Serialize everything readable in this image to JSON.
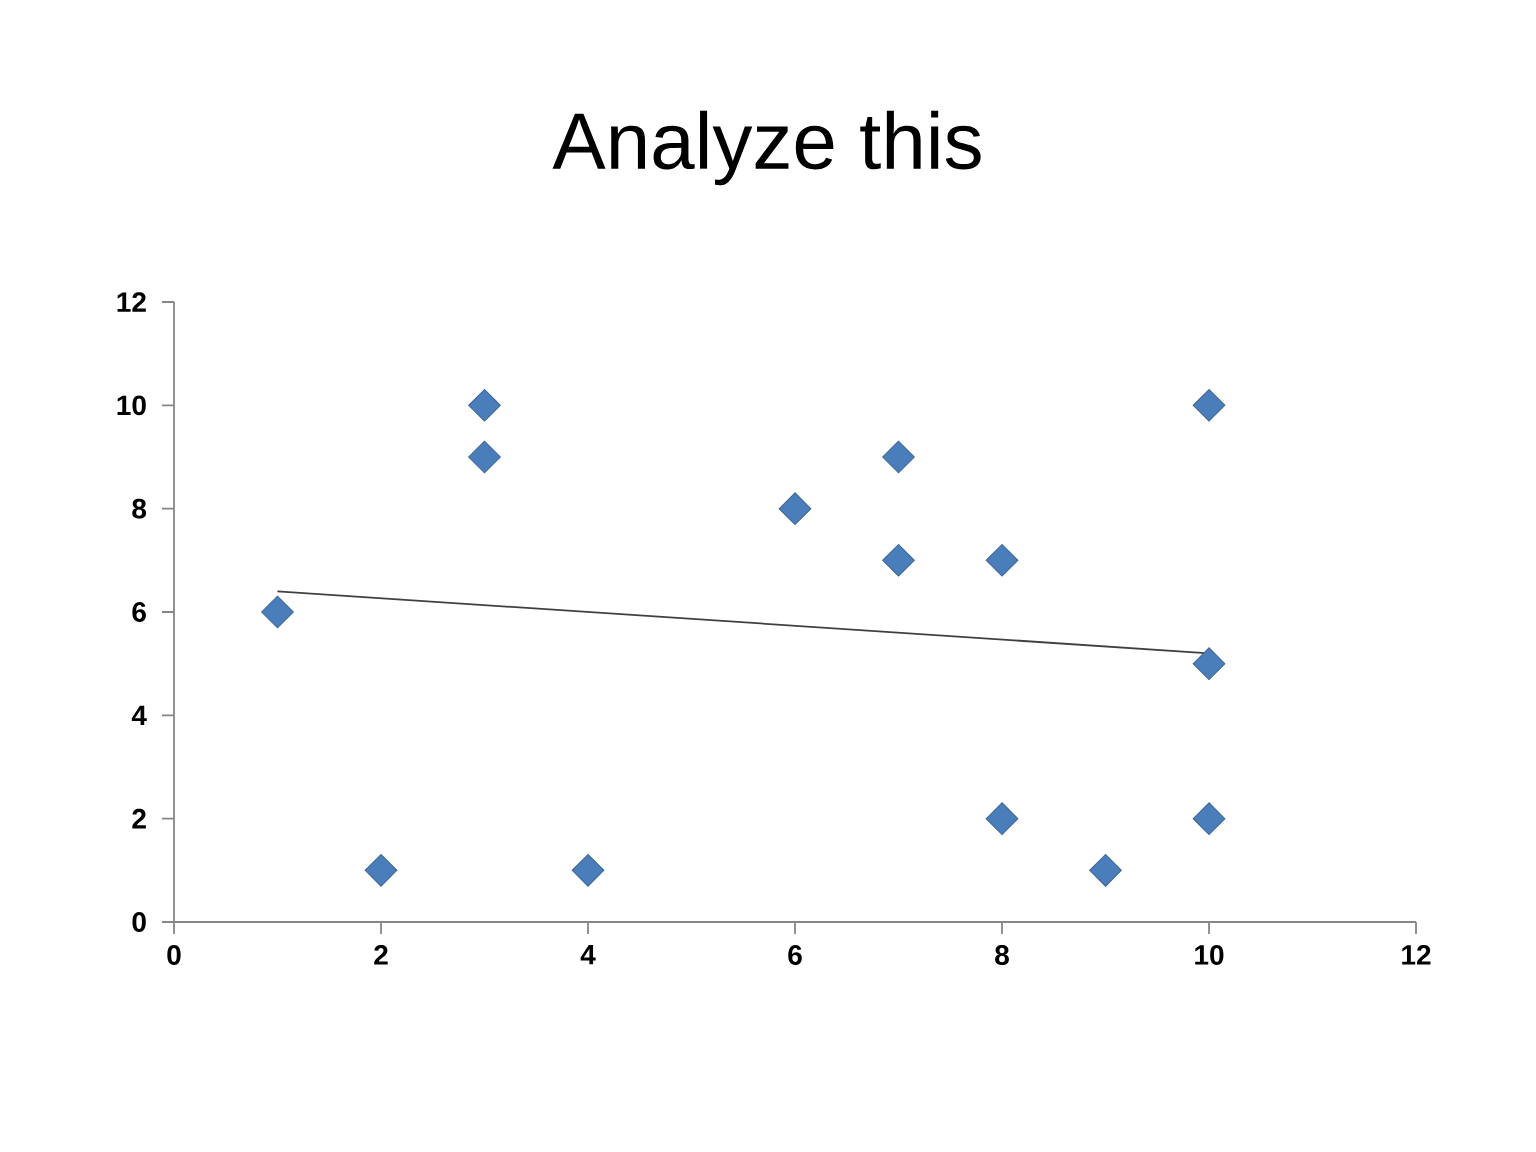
{
  "chart_data": {
    "type": "scatter",
    "title": "Analyze this",
    "series": [
      {
        "color": "#4a7ebb",
        "marker": "diamond",
        "x": [
          1,
          2,
          3,
          3,
          4,
          6,
          7,
          7,
          8,
          8,
          9,
          10,
          10,
          10
        ],
        "values": [
          6,
          1,
          10,
          9,
          1,
          8,
          9,
          7,
          7,
          2,
          1,
          10,
          5,
          2
        ]
      },
      {
        "type": "line",
        "color": "#404040",
        "marker": "none",
        "line_style": "solid",
        "x": [
          1,
          10
        ],
        "values": [
          6.4,
          5.2
        ]
      }
    ],
    "xlim": [
      0,
      12
    ],
    "ylim": [
      0,
      12
    ],
    "xticks": [
      0,
      2,
      4,
      6,
      8,
      10,
      12
    ],
    "yticks": [
      0,
      2,
      4,
      6,
      8,
      10,
      12
    ]
  }
}
